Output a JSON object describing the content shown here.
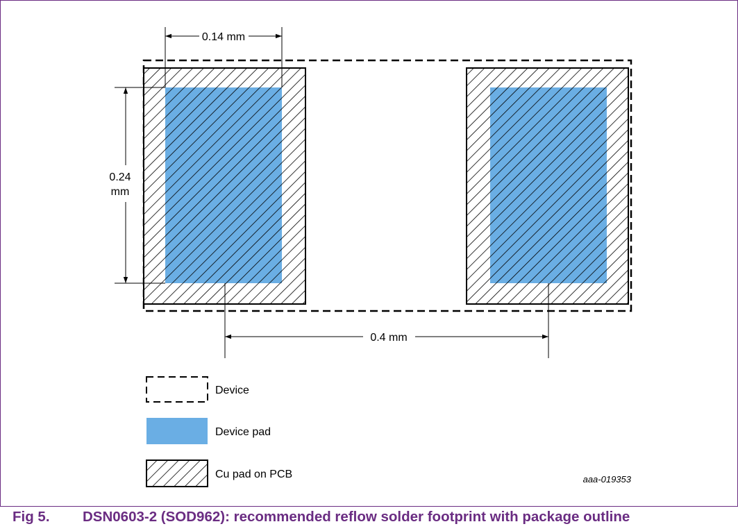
{
  "diagram": {
    "dim_pad_width": "0.14 mm",
    "dim_pad_height_value": "0.24",
    "dim_pad_height_unit": "mm",
    "dim_pitch": "0.4 mm",
    "drawing_id": "aaa-019353"
  },
  "legend": {
    "items": [
      {
        "label": "Device",
        "icon": "dashed-outline-icon"
      },
      {
        "label": "Device pad",
        "icon": "device-pad-swatch-icon"
      },
      {
        "label": "Cu pad on PCB",
        "icon": "hatched-swatch-icon"
      }
    ]
  },
  "caption": {
    "number": "Fig 5.",
    "text": "DSN0603-2 (SOD962): recommended reflow solder footprint with package outline"
  },
  "colors": {
    "device_pad": "#6aaee4",
    "caption": "#6a2c82",
    "hatch": "#000000"
  }
}
